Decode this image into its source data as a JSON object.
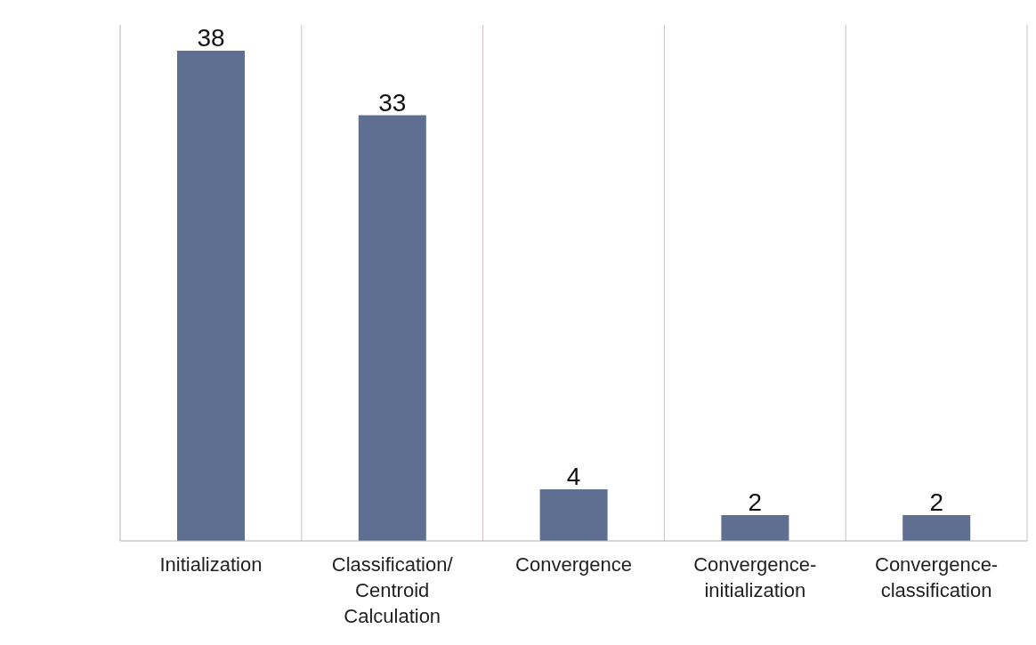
{
  "chart_data": {
    "type": "bar",
    "categories": [
      "Initialization",
      "Classification/ Centroid Calculation",
      "Convergence",
      "Convergence-initialization",
      "Convergence-classification"
    ],
    "values": [
      38,
      33,
      4,
      2,
      2
    ],
    "color": "#5f6f91",
    "data_labels": true,
    "grid": "x"
  }
}
